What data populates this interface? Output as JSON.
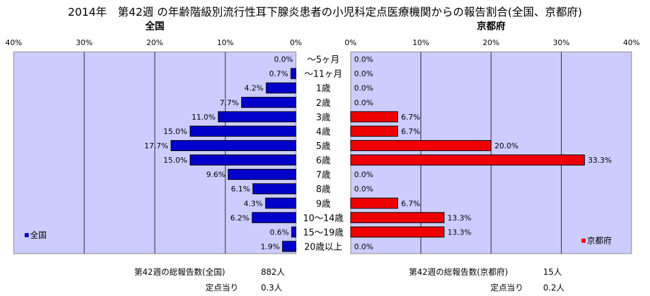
{
  "title": "2014年　第42週 の年齢階級別流行性耳下腺炎患者の小児科定点医療機関からの報告割合(全国、京都府)",
  "chart_data": {
    "type": "bar",
    "orientation": "horizontal",
    "categories": [
      "～5ヶ月",
      "～11ヶ月",
      "1歳",
      "2歳",
      "3歳",
      "4歳",
      "5歳",
      "6歳",
      "7歳",
      "8歳",
      "9歳",
      "10～14歳",
      "15～19歳",
      "20歳以上"
    ],
    "xlim": [
      0,
      40
    ],
    "x_ticks": [
      "0%",
      "10%",
      "20%",
      "30%",
      "40%"
    ],
    "grid": true,
    "series": [
      {
        "name": "全国",
        "panel_title": "全国",
        "color": "#0000cc",
        "values": [
          0.0,
          0.7,
          4.2,
          7.7,
          11.0,
          15.0,
          17.7,
          15.0,
          9.6,
          6.1,
          4.3,
          6.2,
          0.6,
          1.9
        ],
        "labels": [
          "0.0%",
          "0.7%",
          "4.2%",
          "7.7%",
          "11.0%",
          "15.0%",
          "17.7%",
          "15.0%",
          "9.6%",
          "6.1%",
          "4.3%",
          "6.2%",
          "0.6%",
          "1.9%"
        ],
        "legend": "全国",
        "legend_position": "bottom-left"
      },
      {
        "name": "京都府",
        "panel_title": "京都府",
        "color": "#ee0000",
        "values": [
          0.0,
          0.0,
          0.0,
          0.0,
          6.7,
          6.7,
          20.0,
          33.3,
          0.0,
          0.0,
          6.7,
          13.3,
          13.3,
          0.0
        ],
        "labels": [
          "0.0%",
          "0.0%",
          "0.0%",
          "0.0%",
          "6.7%",
          "6.7%",
          "20.0%",
          "33.3%",
          "0.0%",
          "0.0%",
          "6.7%",
          "13.3%",
          "13.3%",
          "0.0%"
        ],
        "legend": "京都府",
        "legend_position": "bottom-right"
      }
    ]
  },
  "footer": {
    "national_total_label": "第42週の総報告数(全国)",
    "national_total_value": "882人",
    "national_per_label": "定点当り",
    "national_per_value": "0.3人",
    "kyoto_total_label": "第42週の総報告数(京都府)",
    "kyoto_total_value": "15人",
    "kyoto_per_label": "定点当り",
    "kyoto_per_value": "0.2人"
  },
  "colors": {
    "plot_bg": "#ccccff",
    "grid": "#000000"
  }
}
